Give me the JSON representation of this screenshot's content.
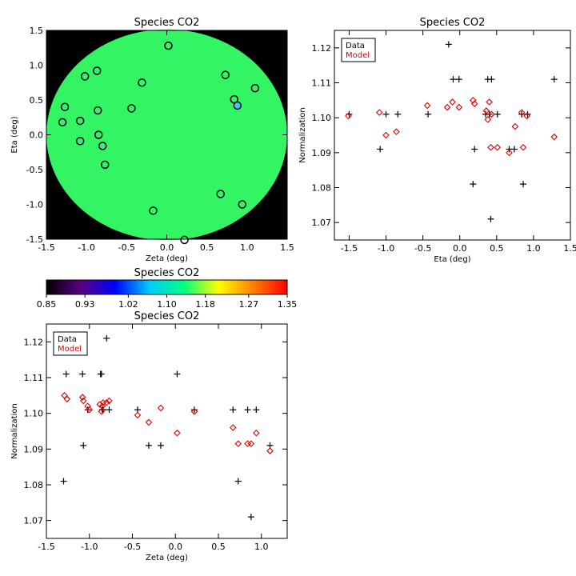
{
  "chart_data": [
    {
      "type": "scatter",
      "title": "Species CO2",
      "xlabel": "Zeta (deg)",
      "ylabel": "Eta (deg)",
      "xlim": [
        -1.5,
        1.5
      ],
      "ylim": [
        -1.5,
        1.5
      ],
      "xticks": [
        "-1.5",
        "-1.0",
        "-0.5",
        "0.0",
        "0.5",
        "1.0",
        "1.5"
      ],
      "yticks": [
        "-1.5",
        "-1.0",
        "-0.5",
        "0.0",
        "0.5",
        "1.0",
        "1.5"
      ],
      "background_color": "#000000",
      "disk_color": "#33f564",
      "points": [
        {
          "x": 0.02,
          "y": 1.28
        },
        {
          "x": -1.02,
          "y": 0.84
        },
        {
          "x": -0.87,
          "y": 0.92
        },
        {
          "x": -0.31,
          "y": 0.75
        },
        {
          "x": 0.73,
          "y": 0.86
        },
        {
          "x": 1.1,
          "y": 0.67
        },
        {
          "x": 0.84,
          "y": 0.51
        },
        {
          "x": -1.27,
          "y": 0.4
        },
        {
          "x": -0.86,
          "y": 0.35
        },
        {
          "x": -0.44,
          "y": 0.38
        },
        {
          "x": -1.3,
          "y": 0.18
        },
        {
          "x": -1.08,
          "y": 0.2
        },
        {
          "x": -0.85,
          "y": 0.0
        },
        {
          "x": -1.08,
          "y": -0.09
        },
        {
          "x": -0.8,
          "y": -0.16
        },
        {
          "x": -0.77,
          "y": -0.43
        },
        {
          "x": 0.67,
          "y": -0.85
        },
        {
          "x": 0.94,
          "y": -1.0
        },
        {
          "x": -0.17,
          "y": -1.09
        },
        {
          "x": 0.22,
          "y": -1.51
        },
        {
          "x": 0.88,
          "y": 0.42,
          "highlight": "#33ccff"
        }
      ]
    },
    {
      "type": "scatter",
      "title": "Species CO2",
      "xlabel": "Eta (deg)",
      "ylabel": "Normalization",
      "xlim": [
        -1.7,
        1.5
      ],
      "ylim": [
        1.065,
        1.125
      ],
      "xticks": [
        "-1.5",
        "-1.0",
        "-0.5",
        "0.0",
        "0.5",
        "1.0",
        "1.5"
      ],
      "yticks": [
        "1.07",
        "1.08",
        "1.09",
        "1.10",
        "1.11",
        "1.12"
      ],
      "legend": [
        "Data",
        "Model"
      ],
      "legend_position": "top-left",
      "series": [
        {
          "name": "Data",
          "marker": "plus",
          "color": "#000000",
          "x": [
            -1.5,
            -1.08,
            -1.0,
            -0.84,
            -0.43,
            -0.15,
            -0.09,
            -0.01,
            0.18,
            0.2,
            0.38,
            0.43,
            0.35,
            0.4,
            0.42,
            0.51,
            0.67,
            0.74,
            0.84,
            0.86,
            0.92,
            1.28
          ],
          "y": [
            1.101,
            1.091,
            1.101,
            1.101,
            1.101,
            1.121,
            1.111,
            1.111,
            1.081,
            1.091,
            1.111,
            1.111,
            1.101,
            1.101,
            1.071,
            1.101,
            1.091,
            1.091,
            1.101,
            1.081,
            1.101,
            1.111
          ]
        },
        {
          "name": "Model",
          "marker": "diamond",
          "color": "#dd0000",
          "x": [
            -1.51,
            -1.09,
            -1.0,
            -0.86,
            -0.44,
            -0.17,
            -0.1,
            -0.01,
            0.18,
            0.2,
            0.36,
            0.38,
            0.4,
            0.43,
            0.42,
            0.51,
            0.67,
            0.75,
            0.84,
            0.86,
            0.91,
            1.28
          ],
          "y": [
            1.1005,
            1.1015,
            1.095,
            1.096,
            1.1035,
            1.103,
            1.1045,
            1.103,
            1.105,
            1.104,
            1.102,
            1.0995,
            1.1045,
            1.101,
            1.0915,
            1.0915,
            1.09,
            1.0975,
            1.1015,
            1.0915,
            1.1005,
            1.0945
          ]
        }
      ]
    },
    {
      "type": "colorbar",
      "title": "Species CO2",
      "range": [
        0.85,
        1.35
      ],
      "ticks": [
        "0.85",
        "0.93",
        "1.02",
        "1.10",
        "1.18",
        "1.27",
        "1.35"
      ],
      "colors": [
        "#000000",
        "#5a0080",
        "#0000ff",
        "#00ccff",
        "#00ff7f",
        "#ffff00",
        "#ff8000",
        "#ff0000"
      ]
    },
    {
      "type": "scatter",
      "title": "Species CO2",
      "xlabel": "Zeta (deg)",
      "ylabel": "Normalization",
      "xlim": [
        -1.5,
        1.3
      ],
      "ylim": [
        1.065,
        1.125
      ],
      "xticks": [
        "-1.5",
        "-1.0",
        "-0.5",
        "0.0",
        "0.5",
        "1.0"
      ],
      "yticks": [
        "1.07",
        "1.08",
        "1.09",
        "1.10",
        "1.11",
        "1.12"
      ],
      "legend": [
        "Data",
        "Model"
      ],
      "legend_position": "top-left",
      "series": [
        {
          "name": "Data",
          "marker": "plus",
          "color": "#000000",
          "x": [
            -1.3,
            -1.27,
            -1.08,
            -1.07,
            -1.02,
            -0.87,
            -0.86,
            -0.85,
            -0.84,
            -0.8,
            -0.77,
            -0.44,
            -0.31,
            -0.17,
            0.02,
            0.22,
            0.67,
            0.73,
            0.84,
            0.88,
            0.94,
            1.1
          ],
          "y": [
            1.081,
            1.111,
            1.111,
            1.091,
            1.101,
            1.111,
            1.111,
            1.101,
            1.101,
            1.121,
            1.101,
            1.101,
            1.091,
            1.091,
            1.111,
            1.101,
            1.101,
            1.081,
            1.101,
            1.071,
            1.101,
            1.091
          ]
        },
        {
          "name": "Model",
          "marker": "diamond",
          "color": "#dd0000",
          "x": [
            -1.29,
            -1.26,
            -1.08,
            -1.07,
            -1.02,
            -1.0,
            -0.88,
            -0.86,
            -0.84,
            -0.85,
            -0.8,
            -0.77,
            -0.44,
            -0.31,
            -0.17,
            0.02,
            0.22,
            0.67,
            0.73,
            0.84,
            0.88,
            0.94,
            1.1
          ],
          "y": [
            1.105,
            1.104,
            1.1045,
            1.1035,
            1.102,
            1.101,
            1.1025,
            1.1005,
            1.103,
            1.102,
            1.103,
            1.1035,
            1.0995,
            1.0975,
            1.1015,
            1.0945,
            1.1005,
            1.096,
            1.0915,
            1.0915,
            1.0915,
            1.0945,
            1.0895
          ]
        }
      ]
    }
  ]
}
